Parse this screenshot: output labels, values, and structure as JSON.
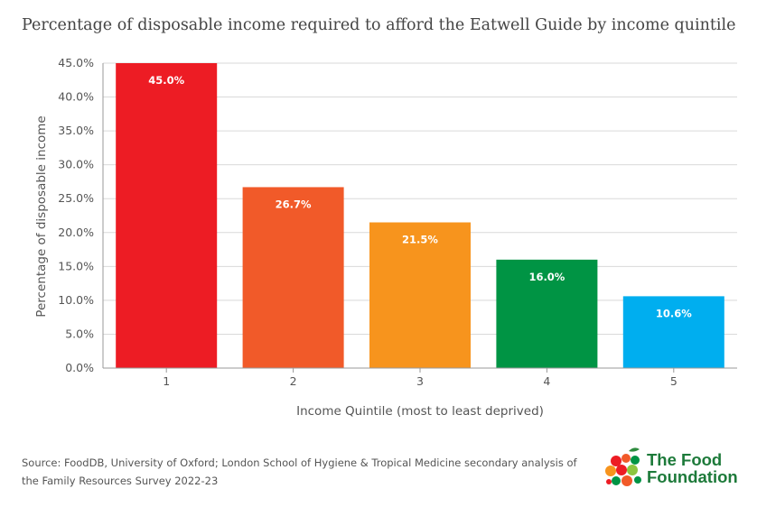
{
  "title": "Percentage of disposable income required to afford the Eatwell Guide by income quintile",
  "source": "Source: FoodDB, University of Oxford; London School of Hygiene & Tropical Medicine secondary analysis of the Family Resources Survey 2022-23",
  "logo": {
    "line1": "The Food",
    "line2": "Foundation"
  },
  "chart_data": {
    "type": "bar",
    "categories": [
      "1",
      "2",
      "3",
      "4",
      "5"
    ],
    "values": [
      45.0,
      26.7,
      21.5,
      16.0,
      10.6
    ],
    "data_labels": [
      "45.0%",
      "26.7%",
      "21.5%",
      "16.0%",
      "10.6%"
    ],
    "colors": [
      "#ed1c24",
      "#f15a29",
      "#f7941d",
      "#009444",
      "#00aeef"
    ],
    "xlabel": "Income Quintile (most to least deprived)",
    "ylabel": "Percentage of disposable income",
    "ylim": [
      0,
      45
    ],
    "yticks": [
      "0.0%",
      "5.0%",
      "10.0%",
      "15.0%",
      "20.0%",
      "25.0%",
      "30.0%",
      "35.0%",
      "40.0%",
      "45.0%"
    ],
    "grid": true,
    "legend": "none"
  }
}
